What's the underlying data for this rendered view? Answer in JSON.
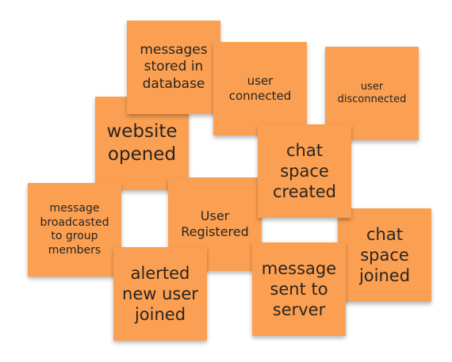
{
  "notes": [
    {
      "id": "messages_stored",
      "text": "messages\nstored in\ndatabase"
    },
    {
      "id": "user_connected",
      "text": "user\nconnected"
    },
    {
      "id": "user_disconnected",
      "text": "user\ndisconnected"
    },
    {
      "id": "website_opened",
      "text": "website\nopened"
    },
    {
      "id": "chat_space_created",
      "text": "chat\nspace\ncreated"
    },
    {
      "id": "message_broadcasted",
      "text": "message\nbroadcasted\nto group\nmembers"
    },
    {
      "id": "user_registered",
      "text": "User\nRegistered"
    },
    {
      "id": "chat_space_joined",
      "text": "chat\nspace\njoined"
    },
    {
      "id": "alerted_new_user",
      "text": "alerted\nnew user\njoined"
    },
    {
      "id": "message_sent",
      "text": "message\nsent to\nserver"
    }
  ],
  "colors": {
    "note": "#fba052",
    "text": "#2a2420",
    "background": "#ffffff"
  }
}
